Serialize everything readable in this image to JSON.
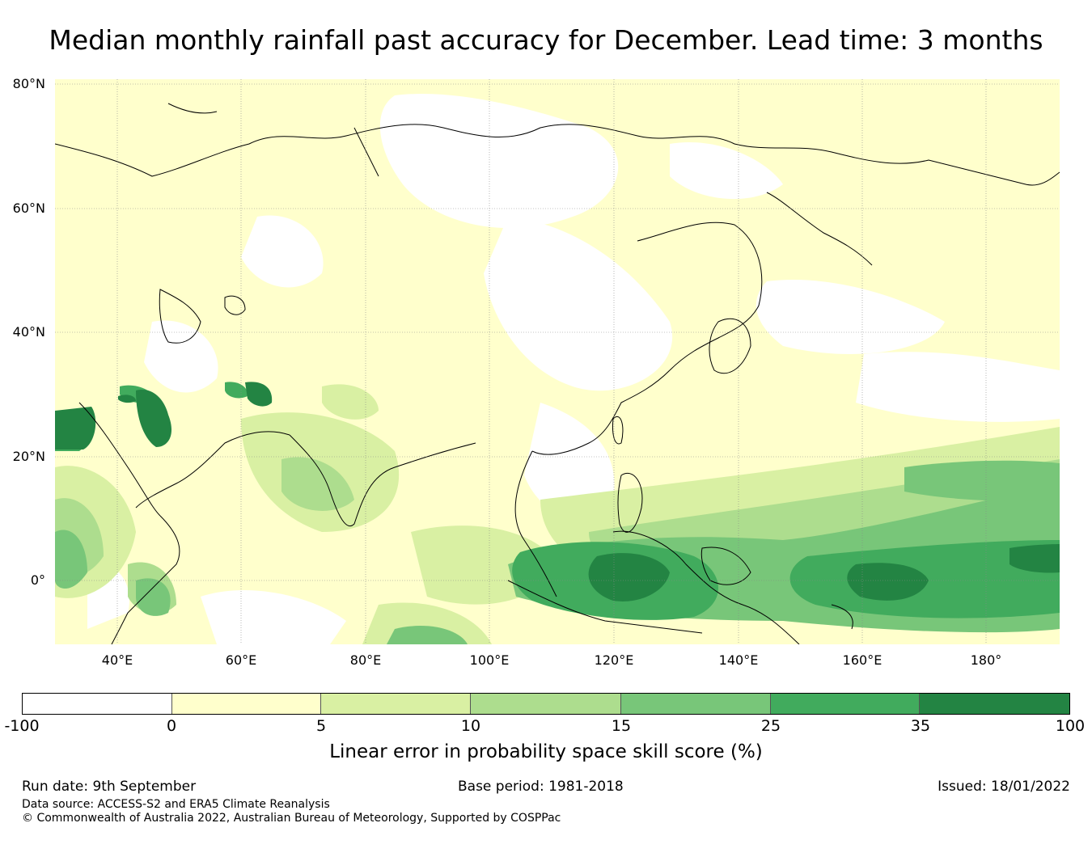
{
  "title": "Median monthly rainfall past accuracy for December. Lead time: 3 months",
  "map": {
    "lat_labels": [
      "80°N",
      "60°N",
      "40°N",
      "20°N",
      "0°"
    ],
    "lon_labels": [
      "40°E",
      "60°E",
      "80°E",
      "100°E",
      "120°E",
      "140°E",
      "160°E",
      "180°"
    ],
    "extent": {
      "lon_min": 30,
      "lon_max": 191,
      "lat_min": -10,
      "lat_max": 81
    },
    "grid": true
  },
  "colorbar": {
    "ticks": [
      "-100",
      "0",
      "5",
      "10",
      "15",
      "25",
      "35",
      "100"
    ],
    "colors": [
      "#ffffff",
      "#ffffcc",
      "#d9f0a3",
      "#addd8e",
      "#78c679",
      "#41ab5d",
      "#238443"
    ],
    "label": "Linear error in probability space skill score (%)"
  },
  "footer": {
    "run_date": "Run date: 9th September",
    "base_period": "Base period: 1981-2018",
    "issued": "Issued: 18/01/2022",
    "data_source": "Data source: ACCESS-S2 and ERA5 Climate Reanalysis",
    "copyright": "© Commonwealth of Australia 2022, Australian Bureau of Meteorology, Supported by COSPPac"
  }
}
